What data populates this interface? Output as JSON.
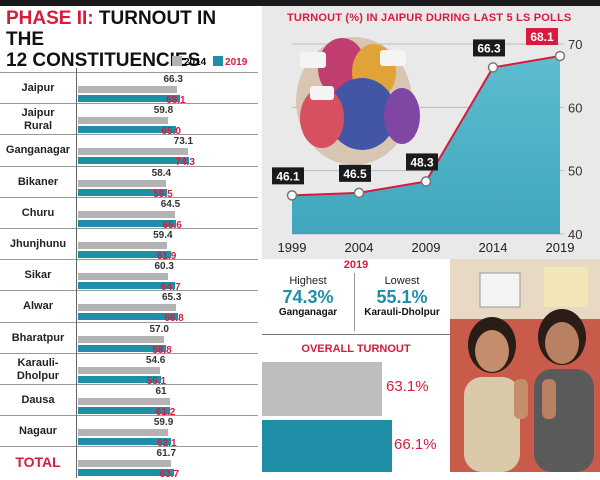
{
  "header": {
    "phase": "PHASE II:",
    "title_rest": "TURNOUT IN THE",
    "title_line2": "12 CONSTITUENCIES"
  },
  "legend": {
    "y2014": "2014",
    "y2019": "2019"
  },
  "colors": {
    "bar2014": "#b3b3b3",
    "bar2019": "#1f8fa8",
    "accent": "#d81b3c"
  },
  "chart_data": [
    {
      "type": "bar",
      "orientation": "horizontal",
      "categories": [
        "Jaipur",
        "Jaipur Rural",
        "Ganganagar",
        "Bikaner",
        "Churu",
        "Jhunjhunu",
        "Sikar",
        "Alwar",
        "Bharatpur",
        "Karauli-Dholpur",
        "Dausa",
        "Nagaur",
        "TOTAL"
      ],
      "category_labels": [
        [
          "Jaipur"
        ],
        [
          "Jaipur",
          "Rural"
        ],
        [
          "Ganganagar"
        ],
        [
          "Bikaner"
        ],
        [
          "Churu"
        ],
        [
          "Jhunjhunu"
        ],
        [
          "Sikar"
        ],
        [
          "Alwar"
        ],
        [
          "Bharatpur"
        ],
        [
          "Karauli-",
          "Dholpur"
        ],
        [
          "Dausa"
        ],
        [
          "Nagaur"
        ],
        [
          "TOTAL"
        ]
      ],
      "series": [
        {
          "name": "2014",
          "values": [
            66.3,
            59.8,
            73.1,
            58.4,
            64.5,
            59.4,
            60.3,
            65.3,
            57.0,
            54.6,
            61,
            59.9,
            61.7
          ],
          "labels": [
            "66.3",
            "59.8",
            "73.1",
            "58.4",
            "64.5",
            "59.4",
            "60.3",
            "65.3",
            "57.0",
            "54.6",
            "61",
            "59.9",
            "61.7"
          ]
        },
        {
          "name": "2019",
          "values": [
            68.1,
            65.0,
            74.3,
            59.5,
            65.6,
            61.9,
            64.7,
            66.8,
            58.8,
            55.1,
            61.2,
            62.1,
            63.7
          ],
          "labels": [
            "68.1",
            "65.0",
            "74.3",
            "59.5",
            "65.6",
            "61.9",
            "64.7",
            "66.8",
            "58.8",
            "55.1",
            "61.2",
            "62.1",
            "63.7"
          ]
        }
      ],
      "xlim": [
        0,
        80
      ]
    },
    {
      "type": "area",
      "title": "TURNOUT (%) IN JAIPUR DURING LAST 5 LS POLLS",
      "x": [
        "1999",
        "2004",
        "2009",
        "2014",
        "2019"
      ],
      "values": [
        46.1,
        46.5,
        48.3,
        66.3,
        68.1
      ],
      "value_labels": [
        "46.1",
        "46.5",
        "48.3",
        "66.3",
        "68.1"
      ],
      "ylim": [
        40,
        70
      ],
      "yticks": [
        "40",
        "50",
        "60",
        "70"
      ],
      "grid": true
    },
    {
      "type": "bar",
      "title": "OVERALL TURNOUT",
      "categories": [
        "2014",
        "2019"
      ],
      "values": [
        63.1,
        66.1
      ],
      "value_labels": [
        "63.1%",
        "66.1%"
      ]
    }
  ],
  "highlights": {
    "year": "2019",
    "highest": {
      "caption": "Highest",
      "value": "74.3%",
      "place": "Ganganagar"
    },
    "lowest": {
      "caption": "Lowest",
      "value": "55.1%",
      "place": "Karauli-Dholpur"
    }
  },
  "photo": {
    "description_icon": "voters-photo"
  }
}
